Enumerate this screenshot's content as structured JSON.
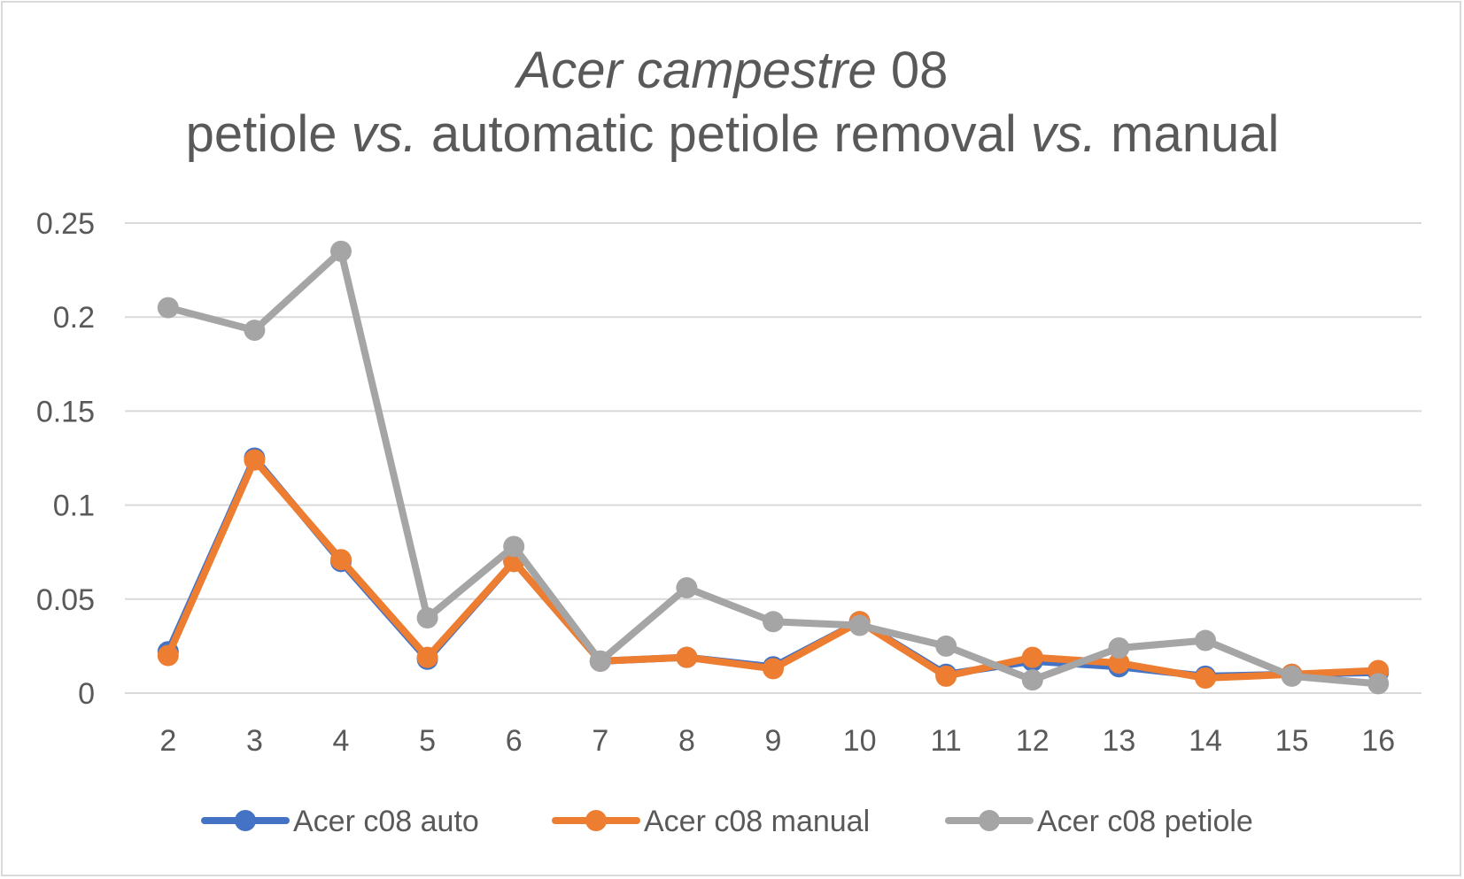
{
  "chart_data": {
    "type": "line",
    "title": {
      "line1_italic": "Acer campestre",
      "line1_rest": " 08",
      "line2_parts": [
        {
          "text": "petiole ",
          "italic": false
        },
        {
          "text": "vs.",
          "italic": true
        },
        {
          "text": " automatic petiole removal ",
          "italic": false
        },
        {
          "text": "vs.",
          "italic": true
        },
        {
          "text": " manual",
          "italic": false
        }
      ]
    },
    "xlabel": "",
    "ylabel": "",
    "x": [
      2,
      3,
      4,
      5,
      6,
      7,
      8,
      9,
      10,
      11,
      12,
      13,
      14,
      15,
      16
    ],
    "ylim": [
      0,
      0.25
    ],
    "yticks": [
      0,
      0.05,
      0.1,
      0.15,
      0.2,
      0.25
    ],
    "ytick_labels": [
      "0",
      "0.05",
      "0.1",
      "0.15",
      "0.2",
      "0.25"
    ],
    "grid": true,
    "legend_position": "bottom",
    "series": [
      {
        "name": "Acer c08 auto",
        "color": "#4472c4",
        "values": [
          0.022,
          0.125,
          0.07,
          0.018,
          0.07,
          0.017,
          0.019,
          0.014,
          0.038,
          0.01,
          0.017,
          0.014,
          0.009,
          0.01,
          0.011
        ]
      },
      {
        "name": "Acer c08 manual",
        "color": "#ed7d31",
        "values": [
          0.02,
          0.124,
          0.071,
          0.019,
          0.07,
          0.017,
          0.019,
          0.013,
          0.038,
          0.009,
          0.019,
          0.016,
          0.008,
          0.01,
          0.012
        ]
      },
      {
        "name": "Acer c08 petiole",
        "color": "#a5a5a5",
        "values": [
          0.205,
          0.193,
          0.235,
          0.04,
          0.078,
          0.017,
          0.056,
          0.038,
          0.036,
          0.025,
          0.007,
          0.024,
          0.028,
          0.009,
          0.005
        ]
      }
    ]
  }
}
